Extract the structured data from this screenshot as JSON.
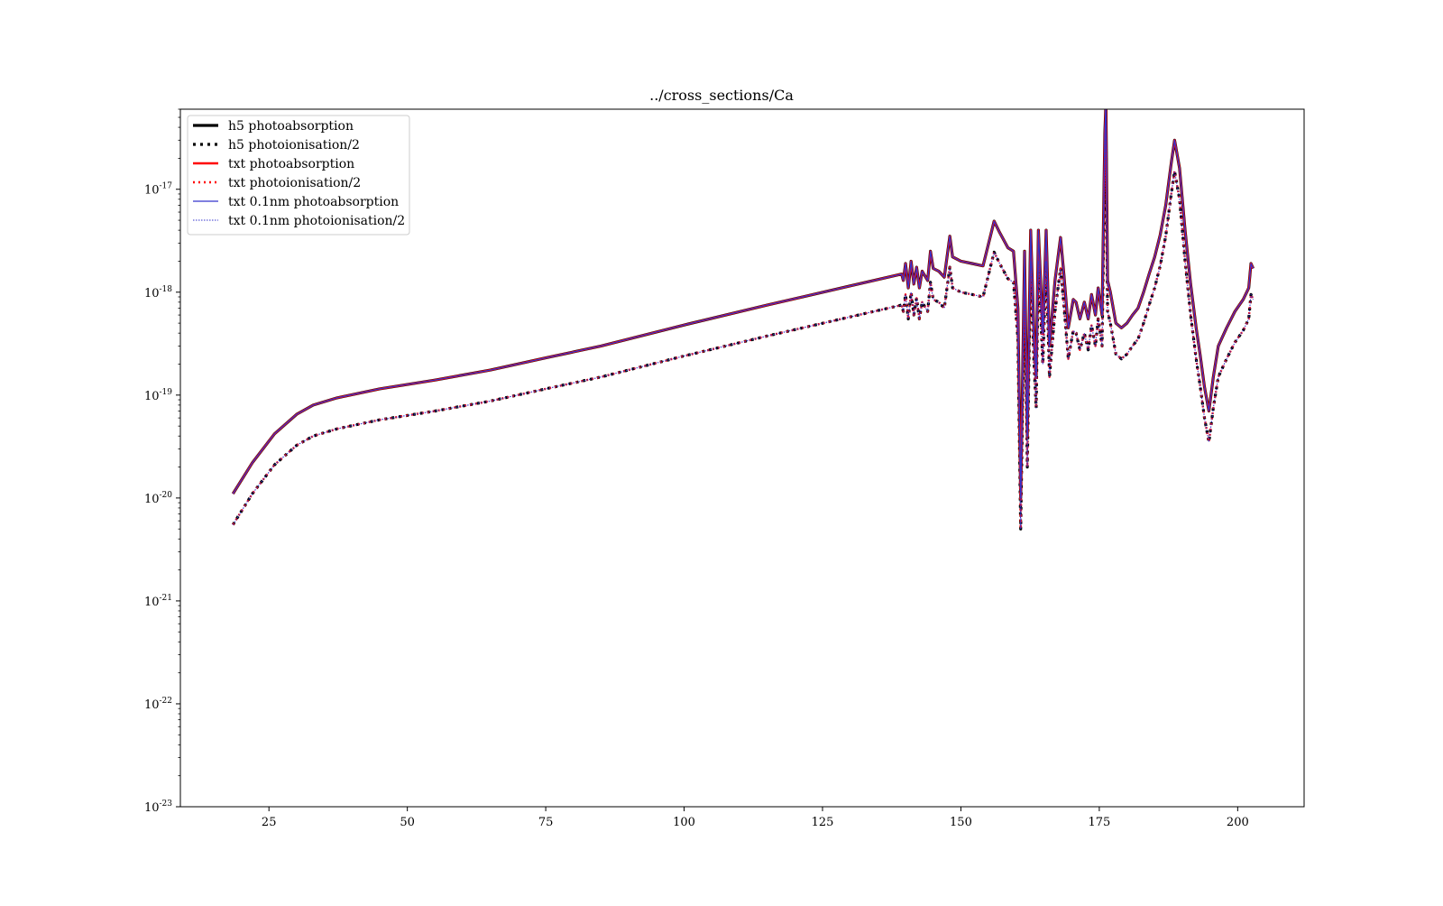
{
  "chart_data": {
    "type": "line",
    "title": "../cross_sections/Ca",
    "xlabel": "",
    "ylabel": "",
    "xlim": [
      9,
      212
    ],
    "ylim": [
      1e-23,
      6e-17
    ],
    "yscale": "log",
    "grid": false,
    "legend_position": "top-left",
    "x_ticks": [
      25,
      50,
      75,
      100,
      125,
      150,
      175,
      200
    ],
    "x_tick_labels": [
      "25",
      "50",
      "75",
      "100",
      "125",
      "150",
      "175",
      "200"
    ],
    "y_ticks": [
      1e-23,
      1e-22,
      1e-21,
      1e-20,
      1e-19,
      1e-18,
      1e-17
    ],
    "y_tick_labels": [
      {
        "base": "10",
        "exp": "-23"
      },
      {
        "base": "10",
        "exp": "-22"
      },
      {
        "base": "10",
        "exp": "-21"
      },
      {
        "base": "10",
        "exp": "-20"
      },
      {
        "base": "10",
        "exp": "-19"
      },
      {
        "base": "10",
        "exp": "-18"
      },
      {
        "base": "10",
        "exp": "-17"
      }
    ],
    "absorption_curve": {
      "x": [
        18.5,
        22,
        26,
        30,
        33,
        37.3,
        45,
        55,
        65,
        75,
        85,
        100,
        115,
        130,
        139.3,
        139.6,
        140,
        140.5,
        141,
        141.5,
        142,
        142.5,
        143,
        144,
        144.5,
        145,
        146,
        147,
        148,
        148.5,
        150,
        152,
        154,
        156,
        157,
        158.5,
        159.5,
        160.3,
        160.8,
        161.5,
        162,
        162.6,
        163.2,
        163.6,
        164,
        164.8,
        165.4,
        166,
        167,
        168,
        168.6,
        169.4,
        170.3,
        170.8,
        171.5,
        172.3,
        173,
        173.6,
        174.3,
        174.8,
        175.5,
        176,
        176.2,
        176.5,
        177,
        178,
        179,
        180,
        181,
        182,
        183,
        184,
        185,
        186,
        187,
        188,
        188.6,
        189.5,
        190.5,
        191.5,
        192.5,
        193.2,
        194,
        194.8,
        195.6,
        196.5,
        198,
        199.5,
        201,
        202,
        202.4,
        202.8
      ],
      "y": [
        1.1e-20,
        2.2e-20,
        4.2e-20,
        6.5e-20,
        8e-20,
        9.4e-20,
        1.15e-19,
        1.4e-19,
        1.75e-19,
        2.3e-19,
        3e-19,
        4.8e-19,
        7.5e-19,
        1.15e-18,
        1.5e-18,
        1.3e-18,
        1.9e-18,
        1.1e-18,
        2e-18,
        1.2e-18,
        1.75e-18,
        1.1e-18,
        1.6e-18,
        1.3e-18,
        2.5e-18,
        1.7e-18,
        1.6e-18,
        1.4e-18,
        3.5e-18,
        2.2e-18,
        2e-18,
        1.9e-18,
        1.8e-18,
        4.9e-18,
        3.8e-18,
        2.7e-18,
        2.5e-18,
        7e-19,
        1e-20,
        2.5e-18,
        4e-20,
        4e-18,
        4e-19,
        1.5e-19,
        4e-18,
        4e-19,
        4e-18,
        3e-19,
        1.3e-18,
        3.4e-18,
        1.5e-18,
        4.5e-19,
        8.5e-19,
        8e-19,
        5.5e-19,
        8e-19,
        5.5e-19,
        9.5e-19,
        6e-19,
        1.1e-18,
        6e-19,
        3.5e-17,
        7e-17,
        1.3e-18,
        1e-18,
        5e-19,
        4.5e-19,
        5e-19,
        6e-19,
        7e-19,
        1e-18,
        1.5e-18,
        2.2e-18,
        3.6e-18,
        7e-18,
        1.8e-17,
        3e-17,
        1.6e-17,
        4e-18,
        1.2e-18,
        4.5e-19,
        2.5e-19,
        1.2e-19,
        7e-20,
        1.5e-19,
        3e-19,
        4.5e-19,
        6.5e-19,
        8.5e-19,
        1.1e-18,
        1.9e-18,
        1.7e-18
      ]
    },
    "series": [
      {
        "name": "h5 photoabsorption",
        "curve": "absorption",
        "color": "#000000",
        "dash": "",
        "width": 3.2
      },
      {
        "name": "h5 photoionisation/2",
        "curve": "ionisation",
        "color": "#000000",
        "dash": "3 5",
        "width": 3.2
      },
      {
        "name": "txt photoabsorption",
        "curve": "absorption",
        "color": "#ff0000",
        "dash": "",
        "width": 2.4
      },
      {
        "name": "txt photoionisation/2",
        "curve": "ionisation",
        "color": "#ff0000",
        "dash": "2 4",
        "width": 2.4
      },
      {
        "name": "txt 0.1nm photoabsorption",
        "curve": "absorption",
        "color": "#3333cc",
        "dash": "",
        "width": 1.3
      },
      {
        "name": "txt 0.1nm photoionisation/2",
        "curve": "ionisation",
        "color": "#3333cc",
        "dash": "1.5 1.5",
        "width": 1.1
      }
    ],
    "ionisation_scale": 0.5
  }
}
